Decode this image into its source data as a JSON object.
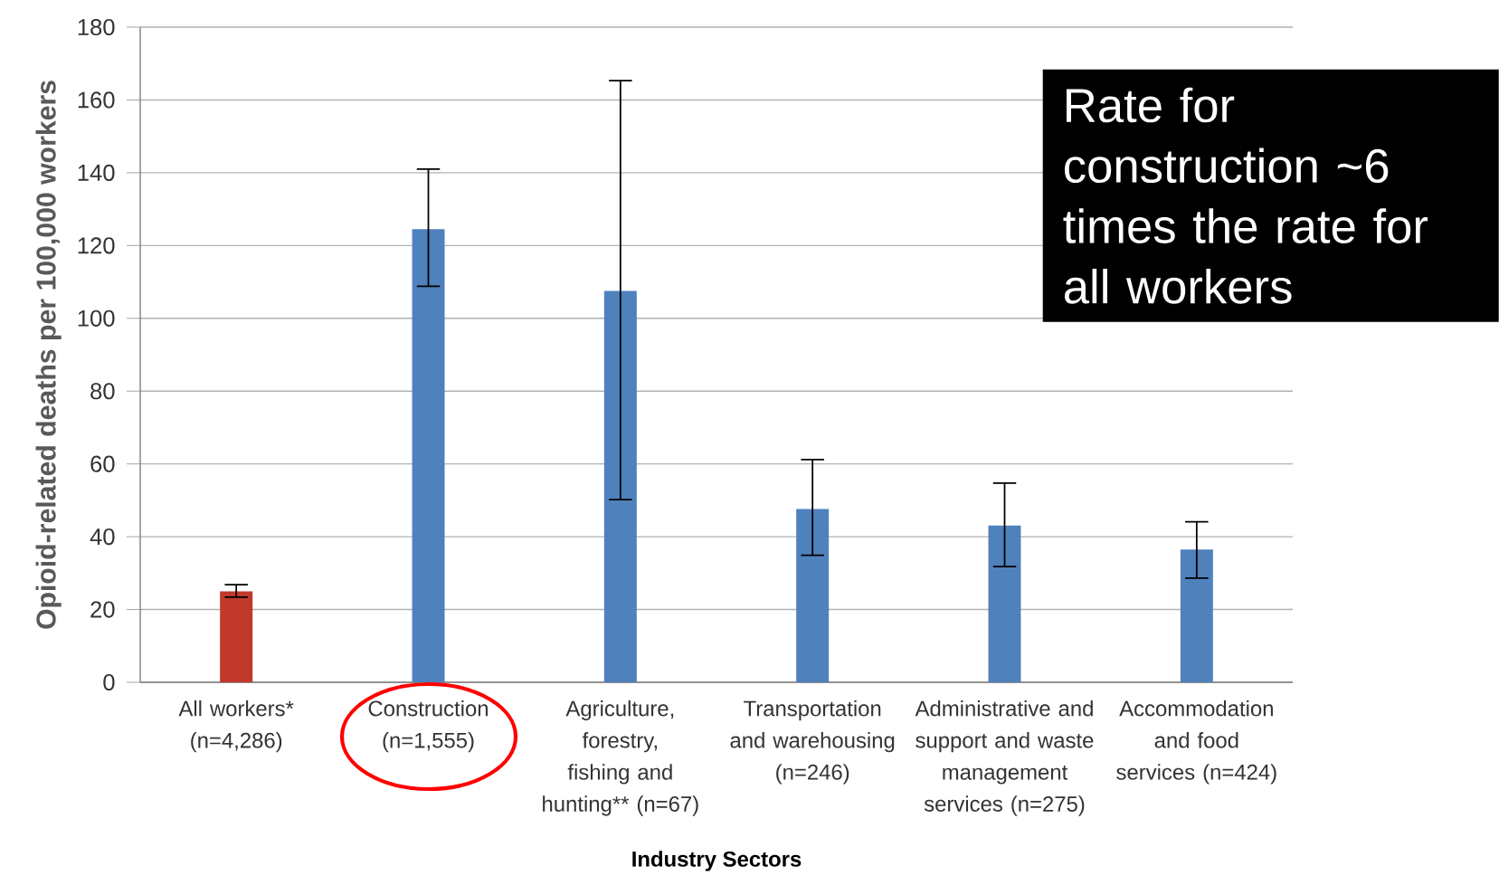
{
  "chart_data": {
    "type": "bar",
    "ylabel": "Opioid-related deaths per 100,000 workers",
    "xlabel": "Industry Sectors",
    "categories": [
      "All workers* (n=4,286)",
      "Construction (n=1,555)",
      "Agriculture, forestry, fishing and hunting** (n=67)",
      "Transportation and warehousing (n=246)",
      "Administrative and support and waste management services (n=275)",
      "Accommodation and food services (n=424)"
    ],
    "values": [
      25,
      124.5,
      107.5,
      47.6,
      43.1,
      36.5
    ],
    "colors": [
      "#c0392b",
      "#4f81bd",
      "#4f81bd",
      "#4f81bd",
      "#4f81bd",
      "#4f81bd"
    ],
    "errors": [
      [
        23.4,
        26.8
      ],
      [
        108.8,
        141
      ],
      [
        50.2,
        165.3
      ],
      [
        34.9,
        61.2
      ],
      [
        31.8,
        54.7
      ],
      [
        28.6,
        44.1
      ]
    ],
    "ylim": [
      0,
      180
    ],
    "yticks": [
      0,
      20,
      40,
      60,
      80,
      100,
      120,
      140,
      160,
      180
    ],
    "grid": "y",
    "annotations": [
      "Rate for construction ~6 times the rate for all workers"
    ]
  }
}
